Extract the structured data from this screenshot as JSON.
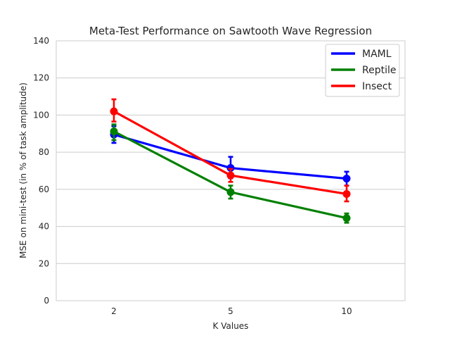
{
  "chart_data": {
    "type": "line",
    "title": "Meta-Test Performance on Sawtooth Wave Regression",
    "xlabel": "K Values",
    "ylabel": "MSE on mini-test (in % of task amplitude)",
    "categories": [
      "2",
      "5",
      "10"
    ],
    "ylim": [
      0,
      140
    ],
    "yticks": [
      "0",
      "20",
      "40",
      "60",
      "80",
      "100",
      "120",
      "140"
    ],
    "grid": "horizontal",
    "legend_position": "top-right",
    "series": [
      {
        "name": "MAML",
        "color": "#0000ff",
        "values": [
          89.5,
          71.5,
          65.8
        ],
        "err_low": [
          85,
          66,
          62
        ],
        "err_high": [
          94,
          77.5,
          69.5
        ]
      },
      {
        "name": "Reptile",
        "color": "#008000",
        "values": [
          91.2,
          58.5,
          44.5
        ],
        "err_low": [
          86.5,
          55,
          42
        ],
        "err_high": [
          95,
          62,
          47
        ]
      },
      {
        "name": "Insect",
        "color": "#ff0000",
        "values": [
          102,
          67.5,
          57.5
        ],
        "err_low": [
          96.5,
          64,
          53.5
        ],
        "err_high": [
          108.5,
          71,
          62
        ]
      }
    ]
  }
}
